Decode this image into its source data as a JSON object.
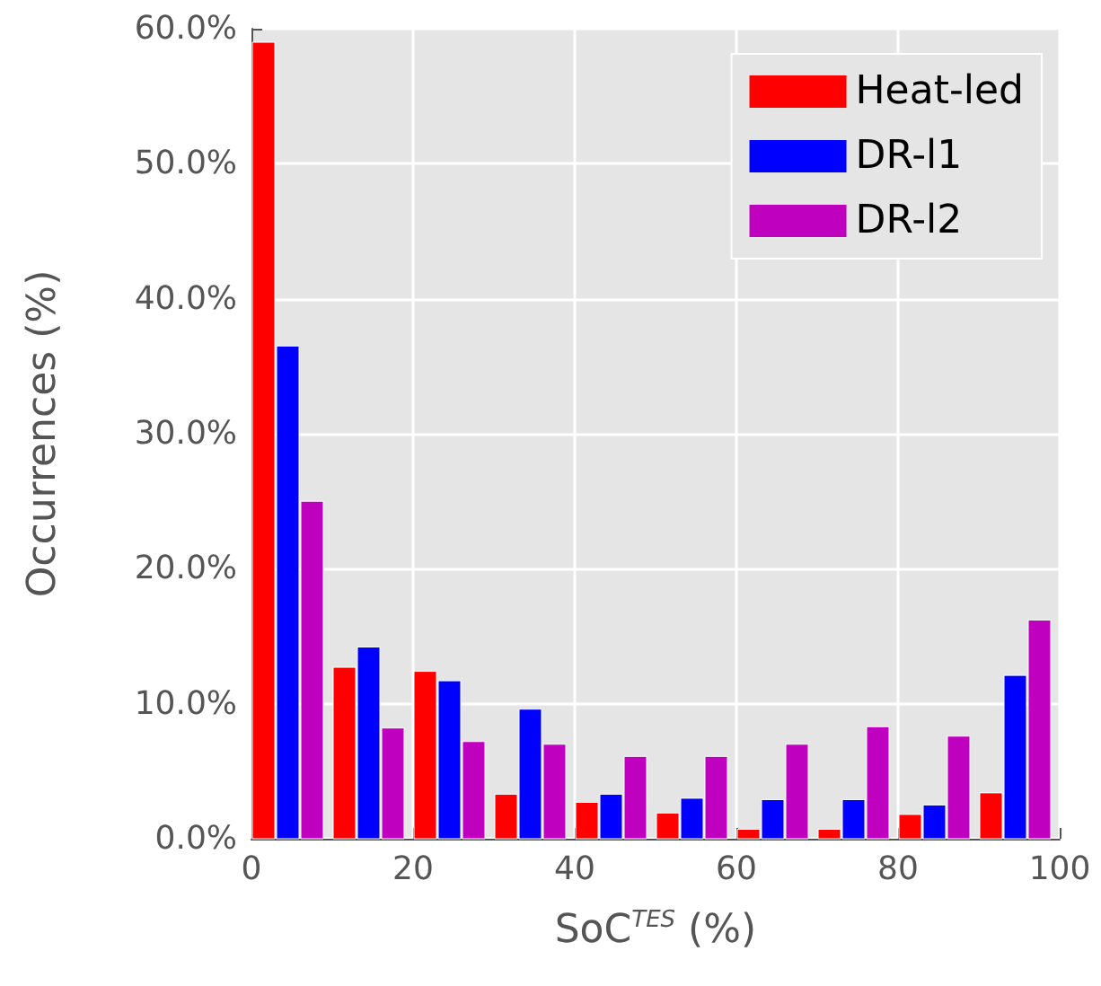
{
  "chart_data": {
    "type": "histogram",
    "xlabel": "SoC$^{TES}$ (%)",
    "ylabel": "Occurrences (%)",
    "bins": [
      0,
      10,
      20,
      30,
      40,
      50,
      60,
      70,
      80,
      90,
      100
    ],
    "series": [
      {
        "name": "Heat-led",
        "color": "#ff0000",
        "values": [
          59,
          12.7,
          12.4,
          3.3,
          2.7,
          1.9,
          0.7,
          0.7,
          1.8,
          3.4
        ]
      },
      {
        "name": "DR-l1",
        "color": "#0000ff",
        "values": [
          36.5,
          14.2,
          11.7,
          9.6,
          3.3,
          3.0,
          2.9,
          2.9,
          2.5,
          12.1
        ]
      },
      {
        "name": "DR-l2",
        "color": "#bf00bf",
        "values": [
          25,
          8.2,
          7.2,
          7.0,
          6.1,
          6.1,
          7.0,
          8.3,
          7.6,
          16.2
        ]
      }
    ],
    "xlim": [
      0,
      100
    ],
    "xticks": [
      0,
      20,
      40,
      60,
      80,
      100
    ],
    "ylim": [
      0,
      60
    ],
    "yticks": [
      {
        "value": 0,
        "label": "0.0%"
      },
      {
        "value": 10,
        "label": "10.0%"
      },
      {
        "value": 20,
        "label": "20.0%"
      },
      {
        "value": 30,
        "label": "30.0%"
      },
      {
        "value": 40,
        "label": "40.0%"
      },
      {
        "value": 50,
        "label": "50.0%"
      },
      {
        "value": 60,
        "label": "60.0%"
      }
    ],
    "grid": true,
    "legend": "top right"
  }
}
